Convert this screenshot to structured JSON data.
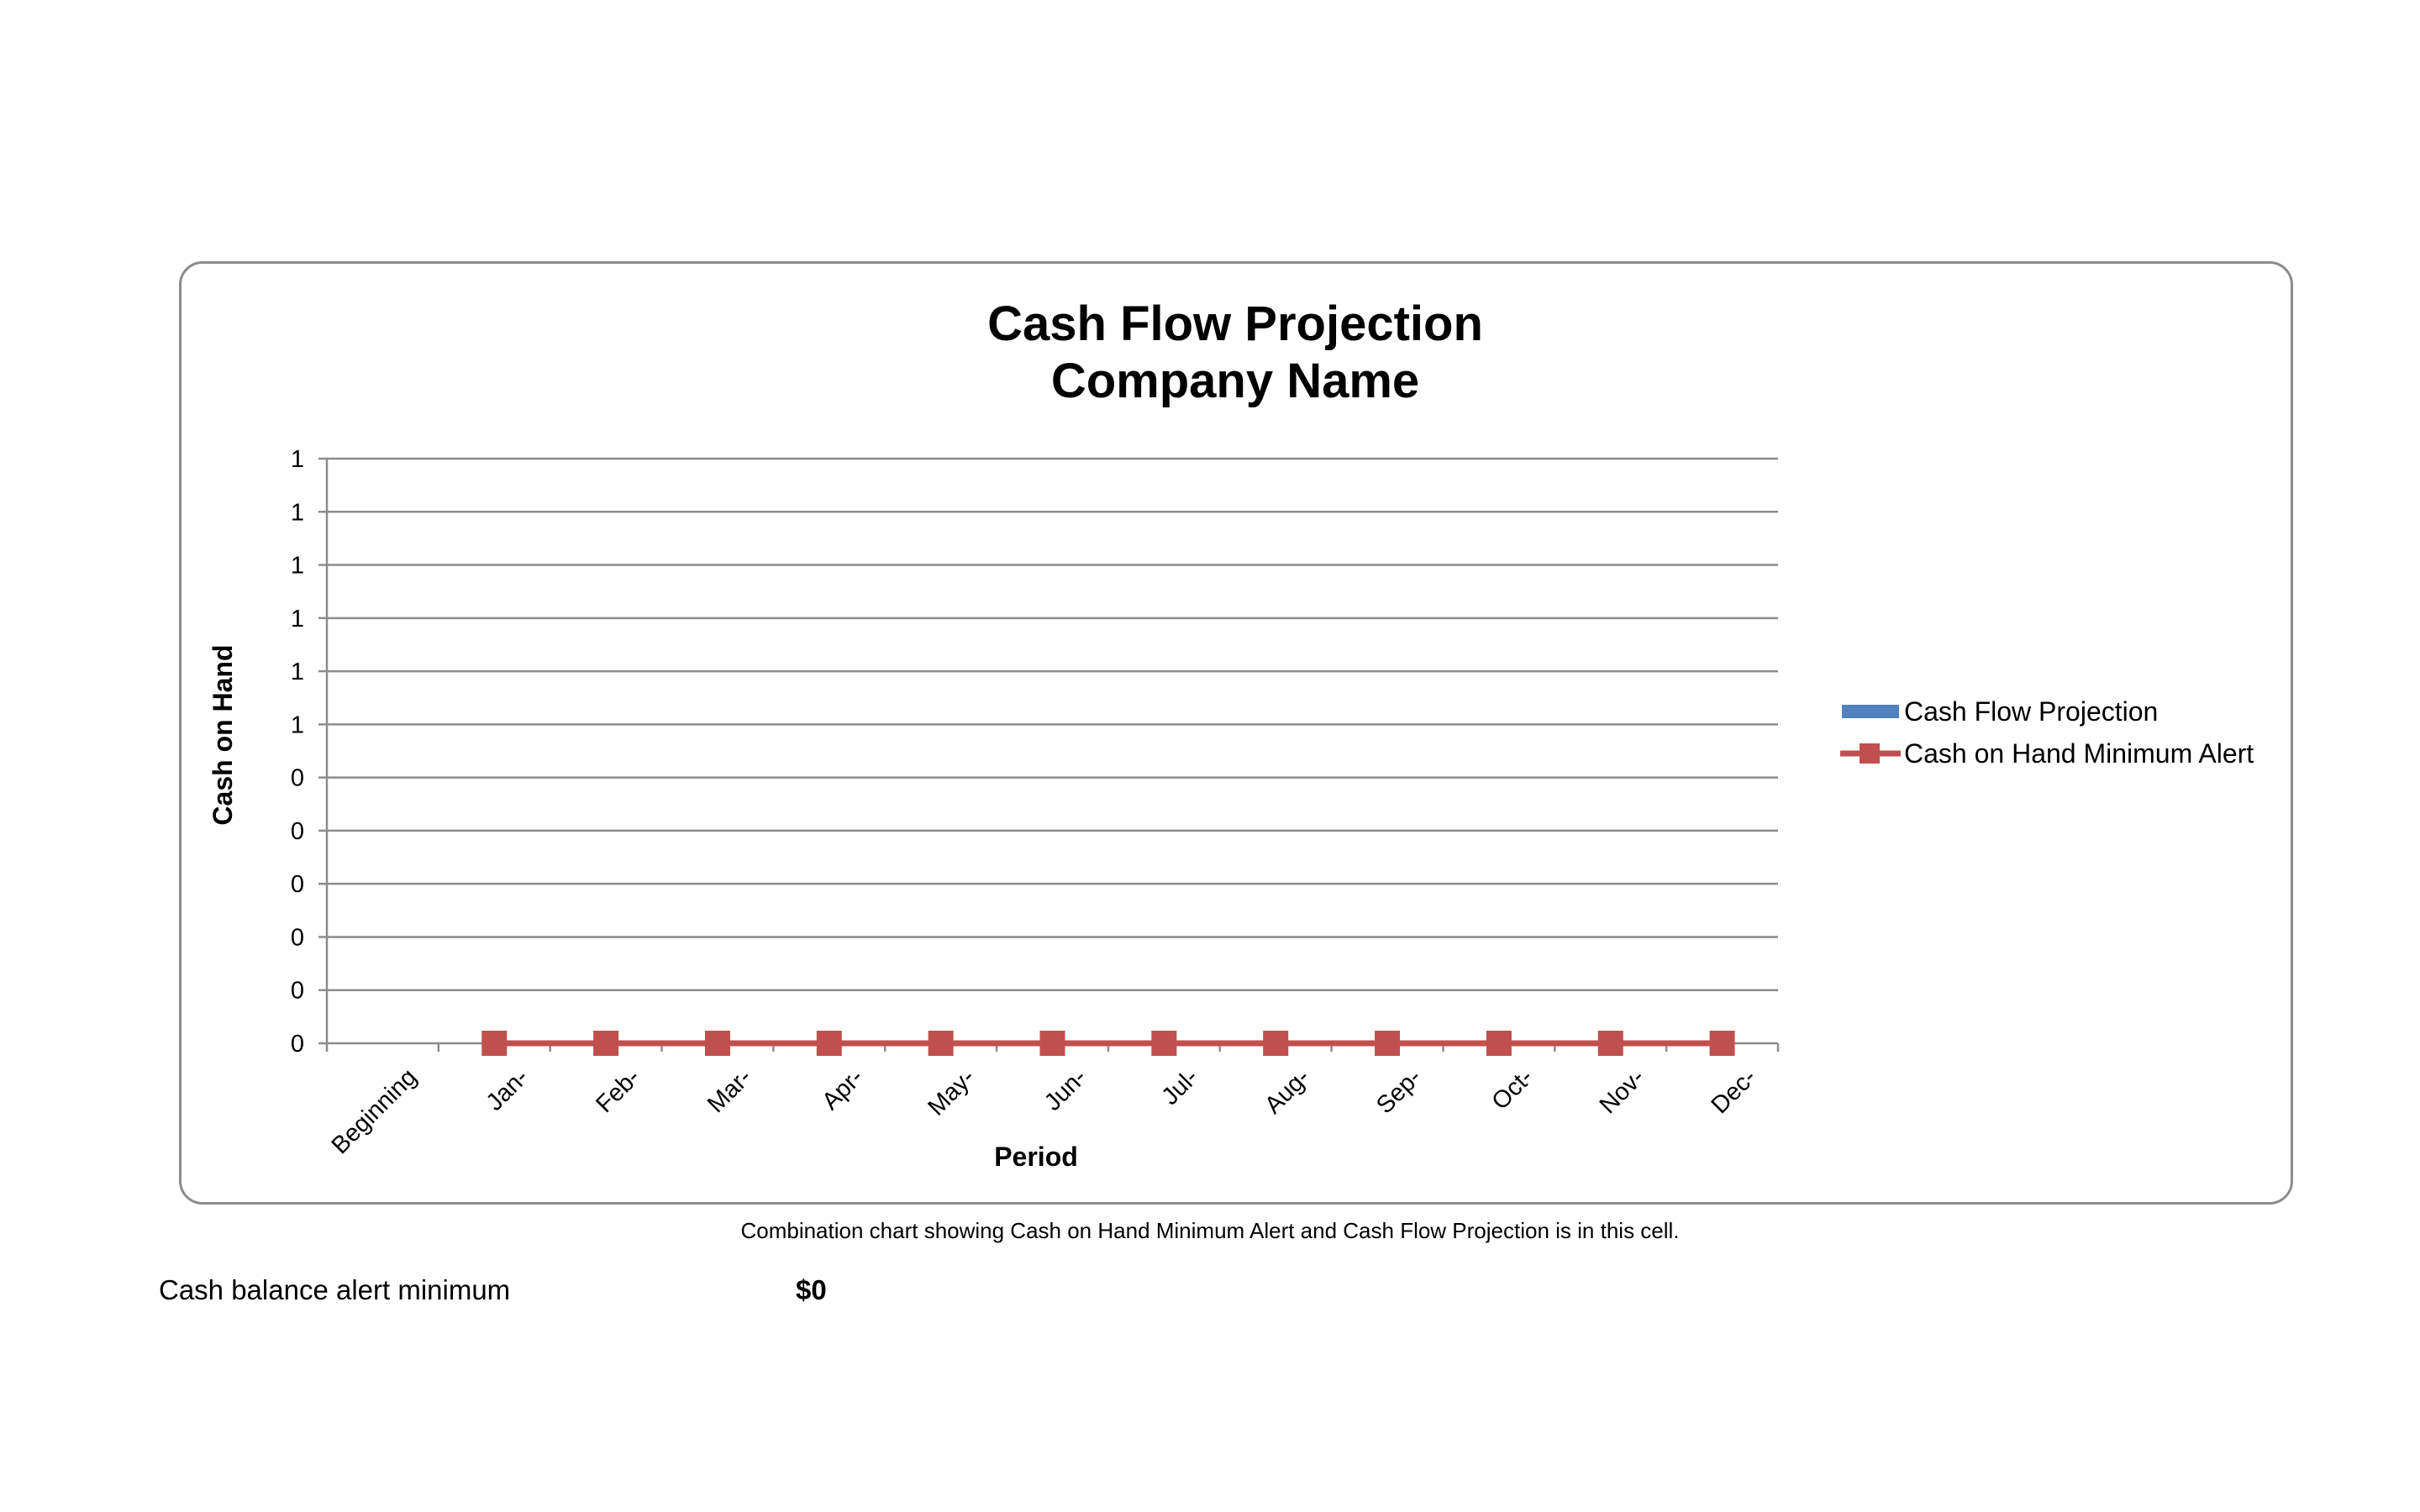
{
  "chart_data": {
    "type": "line",
    "title_lines": [
      "Cash Flow Projection",
      "Company Name"
    ],
    "xlabel": "Period",
    "ylabel": "Cash on Hand",
    "categories": [
      "Beginning",
      "Jan-",
      "Feb-",
      "Mar-",
      "Apr-",
      "May-",
      "Jun-",
      "Jul-",
      "Aug-",
      "Sep-",
      "Oct-",
      "Nov-",
      "Dec-"
    ],
    "y_tick_labels": [
      "0",
      "0",
      "0",
      "0",
      "0",
      "0",
      "1",
      "1",
      "1",
      "1",
      "1",
      "1"
    ],
    "ylim": [
      0,
      1
    ],
    "grid": true,
    "legend_position": "right",
    "series": [
      {
        "name": "Cash Flow Projection",
        "color": "#4f81bd",
        "values": [
          null,
          null,
          null,
          null,
          null,
          null,
          null,
          null,
          null,
          null,
          null,
          null,
          null
        ]
      },
      {
        "name": "Cash on Hand Minimum Alert",
        "color": "#c0504d",
        "marker": "square",
        "values": [
          null,
          0,
          0,
          0,
          0,
          0,
          0,
          0,
          0,
          0,
          0,
          0,
          0
        ]
      }
    ]
  },
  "caption": "Combination chart showing Cash on Hand Minimum Alert and Cash Flow Projection is in this cell.",
  "cash_alert": {
    "label": "Cash balance alert minimum",
    "value": "$0"
  }
}
